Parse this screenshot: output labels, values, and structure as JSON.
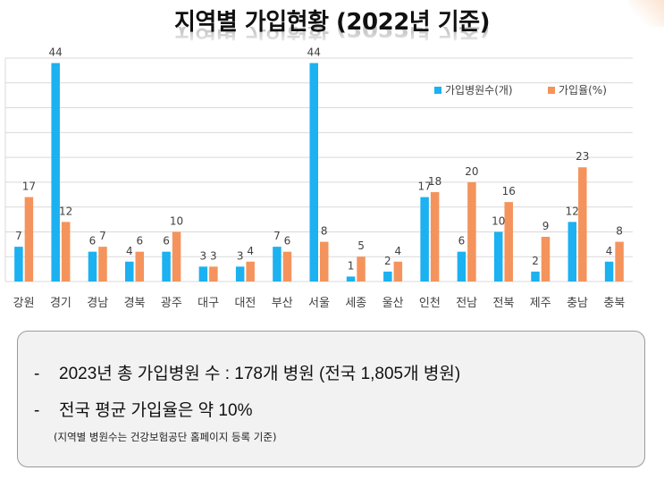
{
  "title": "지역별 가입현황 (2022년 기준)",
  "chart_data": {
    "type": "bar",
    "categories": [
      "강원",
      "경기",
      "경남",
      "경북",
      "광주",
      "대구",
      "대전",
      "부산",
      "서울",
      "세종",
      "울산",
      "인천",
      "전남",
      "전북",
      "제주",
      "충남",
      "충북"
    ],
    "series": [
      {
        "name": "가입병원수(개)",
        "color": "#1cb1f0",
        "values": [
          7,
          44,
          6,
          4,
          6,
          3,
          3,
          7,
          44,
          1,
          2,
          17,
          6,
          10,
          2,
          12,
          4
        ]
      },
      {
        "name": "가입율(%)",
        "color": "#f4945c",
        "values": [
          17,
          12,
          7,
          6,
          10,
          3,
          4,
          6,
          8,
          5,
          4,
          18,
          20,
          16,
          9,
          23,
          8
        ]
      }
    ],
    "ylim": [
      0,
      45
    ],
    "grid": true,
    "legend_position": "top-right",
    "data_labels": true
  },
  "notes": {
    "bullet": "-",
    "line1": "2023년 총 가입병원 수 : 178개 병원 (전국 1,805개 병원)",
    "line2": "전국 평균 가입율은 약 10%",
    "source": "(지역별 병원수는 건강보험공단 홈페이지 등록 기준)"
  }
}
